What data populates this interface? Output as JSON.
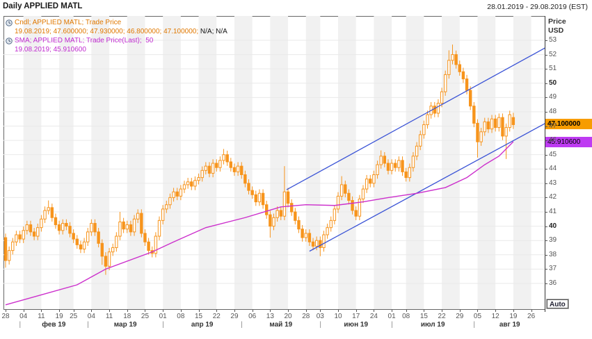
{
  "window": {
    "title": "Daily APPLIED MATL",
    "date_range": "28.01.2019 - 29.08.2019 (EST)"
  },
  "legend": {
    "line1": "Cndl; APPLIED MATL; Trade Price",
    "line2_colored": "19.08.2019; 47.600000; 47.930000; 46.800000; 47.100000; ",
    "line2_plain": "N/A; N/A",
    "line3": "SMA; APPLIED MATL; Trade Price(Last);  50",
    "line4": "19.08.2019; 45.910600"
  },
  "price_axis": {
    "title": "Price",
    "currency": "USD",
    "ticks": [
      53,
      52,
      51,
      50,
      49,
      48,
      47,
      46,
      45,
      44,
      43,
      42,
      41,
      40,
      39,
      38,
      37,
      36
    ],
    "bold_ticks": [
      50,
      40
    ]
  },
  "badges": {
    "last_price": "47.100000",
    "sma_value": "45.910600"
  },
  "controls": {
    "auto_button": "Auto"
  },
  "colors": {
    "candle": "#F7941C",
    "sma": "#CC2FCC",
    "trendline": "#3A53D6",
    "badge_price_bg": "#F79C00",
    "badge_sma_bg": "#BE3BF2",
    "stripe": "#F1F1F1",
    "grid": "#E9E9E9"
  },
  "chart_data": {
    "type": "candlestick",
    "title": "Daily APPLIED MATL",
    "instrument": "APPLIED MATL",
    "interval": "Daily",
    "x_range": "28.01.2019 - 29.08.2019",
    "ylim": [
      34.2,
      54.7
    ],
    "last_bar": {
      "date": "19.08.2019",
      "open": 47.6,
      "high": 47.93,
      "low": 46.8,
      "close": 47.1
    },
    "sma_period": 50,
    "sma_last": 45.9106,
    "first_open": 39.2,
    "wick": 0.28,
    "closes": [
      37.6,
      38.3,
      38.9,
      39.4,
      39.1,
      39.7,
      40.1,
      39.6,
      39.3,
      39.9,
      40.5,
      41.1,
      41.3,
      40.6,
      40.1,
      39.7,
      40.2,
      40.0,
      39.5,
      39.1,
      38.7,
      38.4,
      38.9,
      39.6,
      40.2,
      39.6,
      38.8,
      37.9,
      37.2,
      38.2,
      38.5,
      39.3,
      40.3,
      39.8,
      40.1,
      39.6,
      40.5,
      40.9,
      39.5,
      38.9,
      38.3,
      38.1,
      39.3,
      40.4,
      41.2,
      41.5,
      42.0,
      42.4,
      42.1,
      42.6,
      42.9,
      43.1,
      42.8,
      43.2,
      43.4,
      43.9,
      44.2,
      43.7,
      44.4,
      44.1,
      44.6,
      45.0,
      44.5,
      44.1,
      43.8,
      44.2,
      43.6,
      43.0,
      42.5,
      42.2,
      41.7,
      42.3,
      41.5,
      40.8,
      40.0,
      40.6,
      41.1,
      40.7,
      42.4,
      41.6,
      41.0,
      40.4,
      39.8,
      39.2,
      39.5,
      38.9,
      38.6,
      39.0,
      38.5,
      39.4,
      39.9,
      40.4,
      41.2,
      42.1,
      42.9,
      42.3,
      41.8,
      41.1,
      40.7,
      41.9,
      42.6,
      43.3,
      43.0,
      43.6,
      44.3,
      44.9,
      44.4,
      43.9,
      44.4,
      44.1,
      44.6,
      43.8,
      43.4,
      44.1,
      44.9,
      45.6,
      46.4,
      47.1,
      47.8,
      48.4,
      47.9,
      48.6,
      49.4,
      50.6,
      51.6,
      52.0,
      51.3,
      50.8,
      50.3,
      49.5,
      48.4,
      47.2,
      45.9,
      46.6,
      47.3,
      46.8,
      47.5,
      46.9,
      47.6,
      46.3,
      46.9,
      47.8,
      47.1
    ],
    "overrides": {
      "0": {
        "o": 39.2,
        "l": 37.1
      },
      "12": {
        "h": 41.8
      },
      "27": {
        "l": 37.3
      },
      "28": {
        "l": 36.6
      },
      "32": {
        "h": 41.0
      },
      "61": {
        "h": 45.4
      },
      "74": {
        "l": 39.2
      },
      "78": {
        "h": 44.2
      },
      "88": {
        "l": 37.9
      },
      "94": {
        "h": 43.5
      },
      "105": {
        "h": 45.3
      },
      "124": {
        "h": 52.3
      },
      "125": {
        "h": 52.7
      },
      "132": {
        "l": 44.8
      },
      "140": {
        "l": 44.7
      },
      "142": {
        "o": 47.6,
        "h": 47.93,
        "l": 46.8
      }
    },
    "sma_anchors": [
      [
        0,
        34.5
      ],
      [
        10,
        35.2
      ],
      [
        20,
        35.9
      ],
      [
        28,
        37.0
      ],
      [
        41,
        38.2
      ],
      [
        47,
        38.9
      ],
      [
        56,
        39.9
      ],
      [
        67,
        40.6
      ],
      [
        77,
        41.35
      ],
      [
        84,
        41.5
      ],
      [
        92,
        41.45
      ],
      [
        100,
        41.7
      ],
      [
        107,
        42.0
      ],
      [
        115,
        42.3
      ],
      [
        123,
        42.7
      ],
      [
        129,
        43.4
      ],
      [
        134,
        44.3
      ],
      [
        138,
        44.9
      ],
      [
        142,
        45.91
      ]
    ],
    "trendlines": [
      {
        "name": "upper-channel",
        "i1": 78.6,
        "p1": 42.55,
        "i2": 151.5,
        "p2": 52.55
      },
      {
        "name": "lower-channel",
        "i1": 85.0,
        "p1": 38.25,
        "i2": 151.0,
        "p2": 47.2
      }
    ],
    "x_ticks": [
      {
        "label": "28",
        "index": 0
      },
      {
        "label": "04",
        "index": 5
      },
      {
        "label": "11",
        "index": 10
      },
      {
        "label": "19",
        "index": 15
      },
      {
        "label": "25",
        "index": 19
      },
      {
        "label": "04",
        "index": 24
      },
      {
        "label": "11",
        "index": 29
      },
      {
        "label": "18",
        "index": 34
      },
      {
        "label": "25",
        "index": 39
      },
      {
        "label": "01",
        "index": 44
      },
      {
        "label": "08",
        "index": 49
      },
      {
        "label": "15",
        "index": 54
      },
      {
        "label": "22",
        "index": 59
      },
      {
        "label": "29",
        "index": 64
      },
      {
        "label": "06",
        "index": 69
      },
      {
        "label": "13",
        "index": 74
      },
      {
        "label": "20",
        "index": 79
      },
      {
        "label": "28",
        "index": 84
      },
      {
        "label": "03",
        "index": 88
      },
      {
        "label": "10",
        "index": 93
      },
      {
        "label": "17",
        "index": 98
      },
      {
        "label": "24",
        "index": 103
      },
      {
        "label": "01",
        "index": 108
      },
      {
        "label": "08",
        "index": 112
      },
      {
        "label": "15",
        "index": 117
      },
      {
        "label": "22",
        "index": 122
      },
      {
        "label": "29",
        "index": 127
      },
      {
        "label": "05",
        "index": 132
      },
      {
        "label": "12",
        "index": 137
      },
      {
        "label": "19",
        "index": 142
      },
      {
        "label": "26",
        "index": 147
      }
    ],
    "months": [
      {
        "label": "фев 19",
        "start": 4,
        "end": 23
      },
      {
        "label": "мар 19",
        "start": 23,
        "end": 44
      },
      {
        "label": "апр 19",
        "start": 44,
        "end": 66
      },
      {
        "label": "май 19",
        "start": 66,
        "end": 88
      },
      {
        "label": "июн 19",
        "start": 88,
        "end": 108
      },
      {
        "label": "июл 19",
        "start": 108,
        "end": 131
      },
      {
        "label": "авг 19",
        "start": 131,
        "end": 151
      }
    ]
  }
}
